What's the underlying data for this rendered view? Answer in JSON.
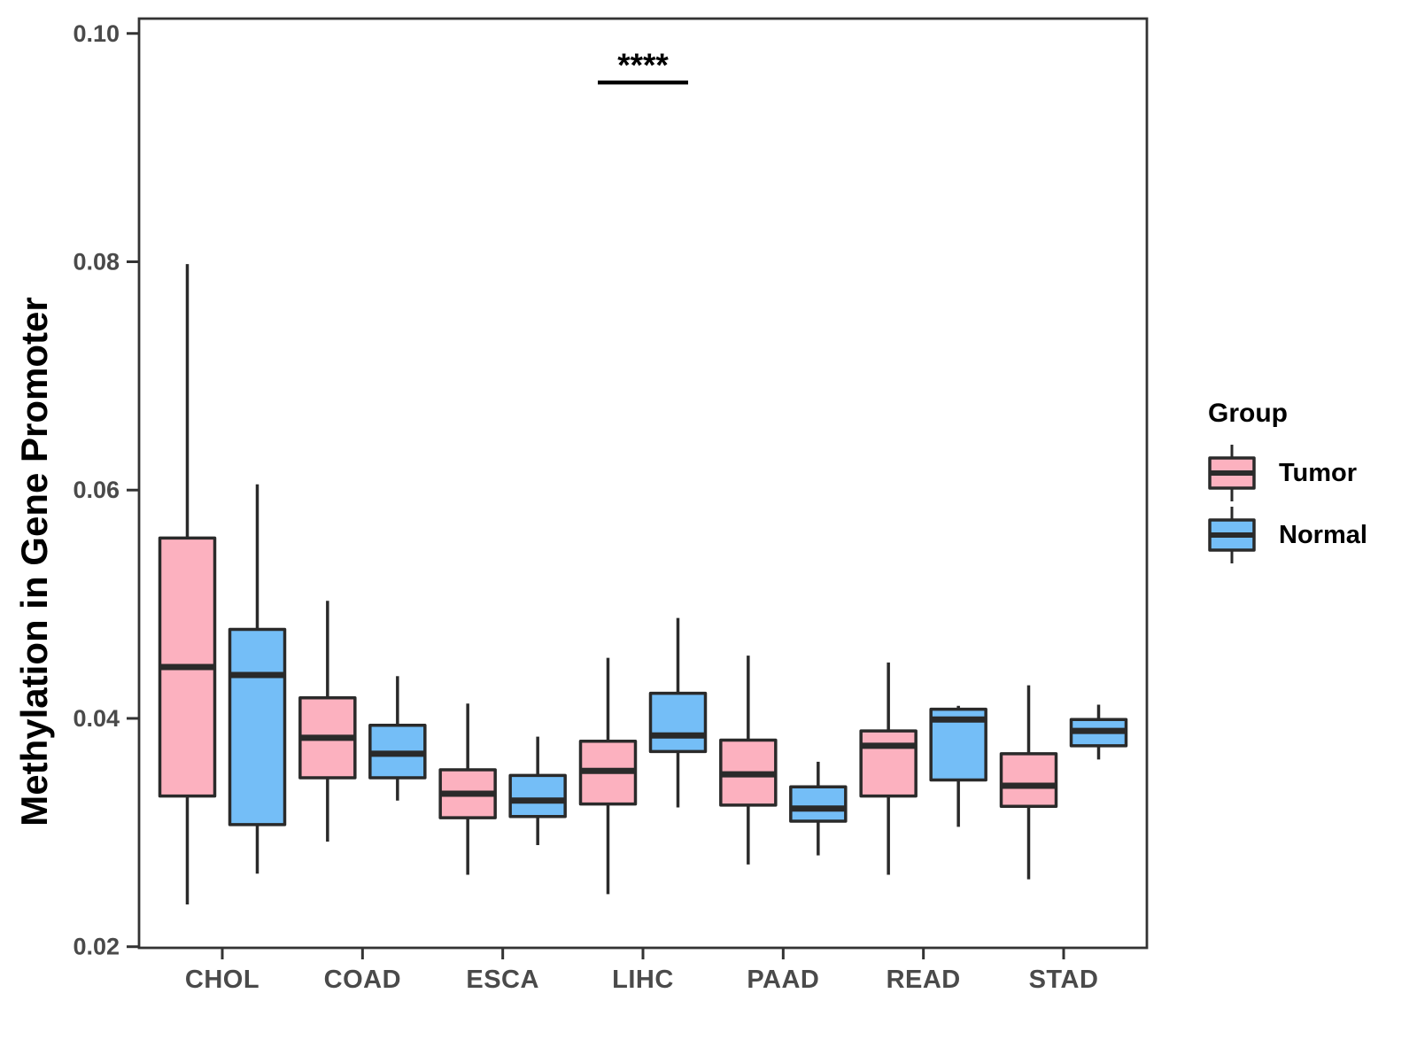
{
  "chart_data": {
    "type": "boxplot",
    "title": "",
    "xlabel": "",
    "ylabel": "Methylation in Gene Promoter",
    "ylim": [
      0.0199,
      0.1013
    ],
    "yticks": {
      "values": [
        0.02,
        0.04,
        0.06,
        0.08,
        0.1
      ],
      "labels": [
        "0.02",
        "0.04",
        "0.06",
        "0.08",
        "0.10"
      ]
    },
    "categories": [
      "CHOL",
      "COAD",
      "ESCA",
      "LIHC",
      "PAAD",
      "READ",
      "STAD"
    ],
    "grid": false,
    "legend": {
      "title": "Group",
      "position": "right"
    },
    "series": [
      {
        "name": "Tumor",
        "color": "#FCB1BF",
        "boxes": [
          {
            "min": 0.0237,
            "q1": 0.0332,
            "median": 0.0445,
            "q3": 0.0558,
            "max": 0.0798
          },
          {
            "min": 0.0292,
            "q1": 0.0348,
            "median": 0.0383,
            "q3": 0.0418,
            "max": 0.0503
          },
          {
            "min": 0.0263,
            "q1": 0.0313,
            "median": 0.0334,
            "q3": 0.0355,
            "max": 0.0413
          },
          {
            "min": 0.0246,
            "q1": 0.0325,
            "median": 0.0354,
            "q3": 0.038,
            "max": 0.0453
          },
          {
            "min": 0.0272,
            "q1": 0.0324,
            "median": 0.0351,
            "q3": 0.0381,
            "max": 0.0455
          },
          {
            "min": 0.0263,
            "q1": 0.0332,
            "median": 0.0376,
            "q3": 0.0389,
            "max": 0.0449
          },
          {
            "min": 0.0259,
            "q1": 0.0323,
            "median": 0.0341,
            "q3": 0.0369,
            "max": 0.0429
          }
        ]
      },
      {
        "name": "Normal",
        "color": "#74BEF7",
        "boxes": [
          {
            "min": 0.0264,
            "q1": 0.0307,
            "median": 0.0438,
            "q3": 0.0478,
            "max": 0.0605
          },
          {
            "min": 0.0328,
            "q1": 0.0348,
            "median": 0.0369,
            "q3": 0.0394,
            "max": 0.0437
          },
          {
            "min": 0.0289,
            "q1": 0.0314,
            "median": 0.0328,
            "q3": 0.035,
            "max": 0.0384
          },
          {
            "min": 0.0322,
            "q1": 0.0371,
            "median": 0.0385,
            "q3": 0.0422,
            "max": 0.0488
          },
          {
            "min": 0.028,
            "q1": 0.031,
            "median": 0.0321,
            "q3": 0.034,
            "max": 0.0362
          },
          {
            "min": 0.0305,
            "q1": 0.0346,
            "median": 0.0399,
            "q3": 0.0408,
            "max": 0.0411
          },
          {
            "min": 0.0364,
            "q1": 0.0376,
            "median": 0.0389,
            "q3": 0.0399,
            "max": 0.0412
          }
        ]
      }
    ],
    "annotations": [
      {
        "text": "****",
        "category": "LIHC",
        "bar_y": 0.0957
      }
    ],
    "colors": {
      "box_stroke": "#2A2A2A",
      "axis_line": "#333333",
      "axis_text": "#4A4A4A",
      "annotation": "#000000"
    }
  }
}
